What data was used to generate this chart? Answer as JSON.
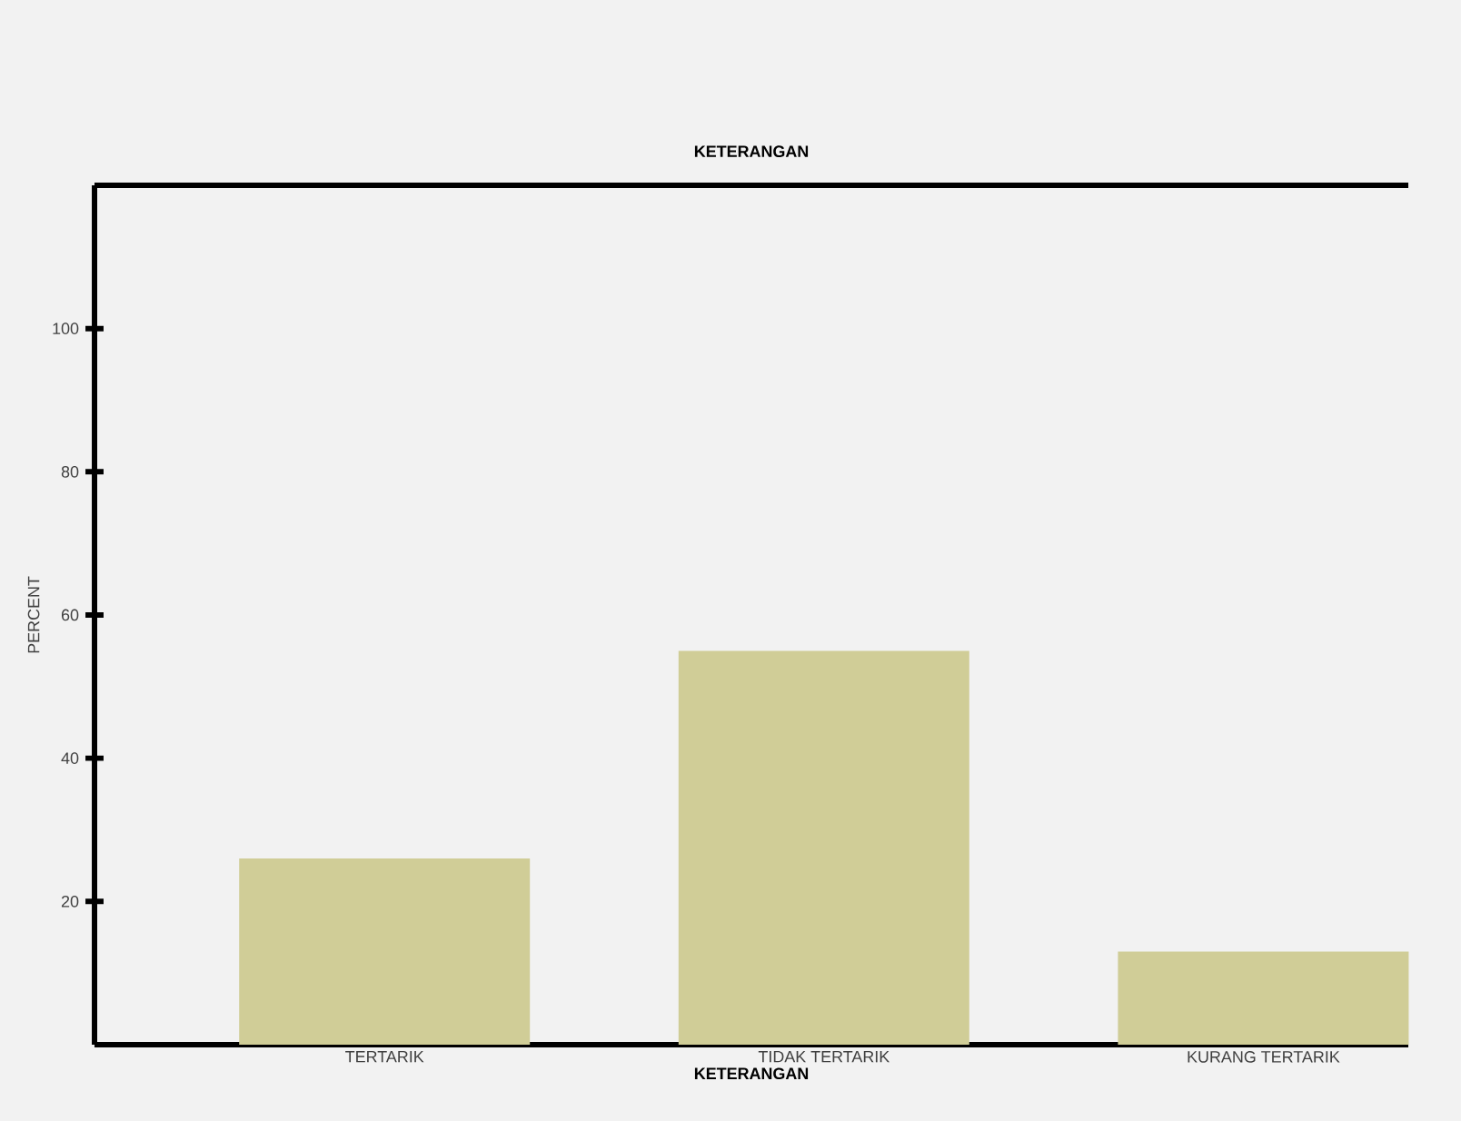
{
  "chart_data": {
    "type": "bar",
    "title": "KETERANGAN",
    "xlabel": "KETERANGAN",
    "ylabel": "PERCENT",
    "categories": [
      "TERTARIK",
      "TIDAK TERTARIK",
      "KURANG TERTARIK"
    ],
    "values": [
      26,
      55,
      13
    ],
    "color": "#d0cd97",
    "ylim": [
      0,
      120
    ],
    "yticks": [
      20,
      40,
      60,
      80,
      100
    ],
    "grid": false
  }
}
